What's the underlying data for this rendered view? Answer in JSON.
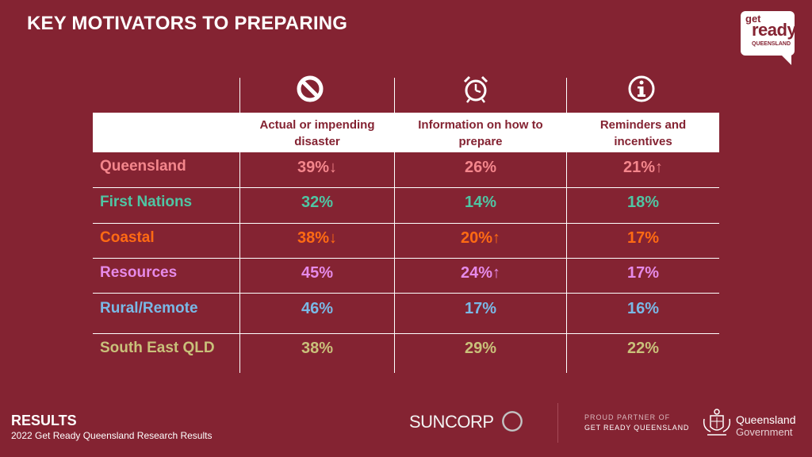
{
  "slide": {
    "title": "KEY MOTIVATORS TO PREPARING"
  },
  "logo": {
    "line1": "get",
    "line2": "ready",
    "line3": "QUEENSLAND"
  },
  "table": {
    "columns": [
      {
        "label": "Actual or impending disaster",
        "icon": "prohibited-icon"
      },
      {
        "label": "Information on how to prepare",
        "icon": "alarm-clock-icon"
      },
      {
        "label": "Reminders and incentives",
        "icon": "info-icon"
      }
    ],
    "rows": [
      {
        "label": "Queensland",
        "color": "#f4868c",
        "values": [
          "39%↓",
          "26%",
          "21%↑"
        ]
      },
      {
        "label": "First Nations",
        "color": "#4fc5a3",
        "values": [
          "32%",
          "14%",
          "18%"
        ]
      },
      {
        "label": "Coastal",
        "color": "#ff6a13",
        "values": [
          "38%↓",
          "20%↑",
          "17%"
        ]
      },
      {
        "label": "Resources",
        "color": "#e58ae8",
        "values": [
          "45%",
          "24%↑",
          "17%"
        ]
      },
      {
        "label": "Rural/Remote",
        "color": "#79b9e6",
        "values": [
          "46%",
          "17%",
          "16%"
        ]
      },
      {
        "label": "South East QLD",
        "color": "#c9c17a",
        "values": [
          "38%",
          "29%",
          "22%"
        ]
      }
    ]
  },
  "footer": {
    "section": "RESULTS",
    "subtitle": "2022 Get Ready Queensland Research Results",
    "sponsor": "SUNCORP",
    "partner_line1": "PROUD PARTNER OF",
    "partner_line2": "GET READY QUEENSLAND",
    "gov_line1": "Queensland",
    "gov_line2": "Government"
  }
}
